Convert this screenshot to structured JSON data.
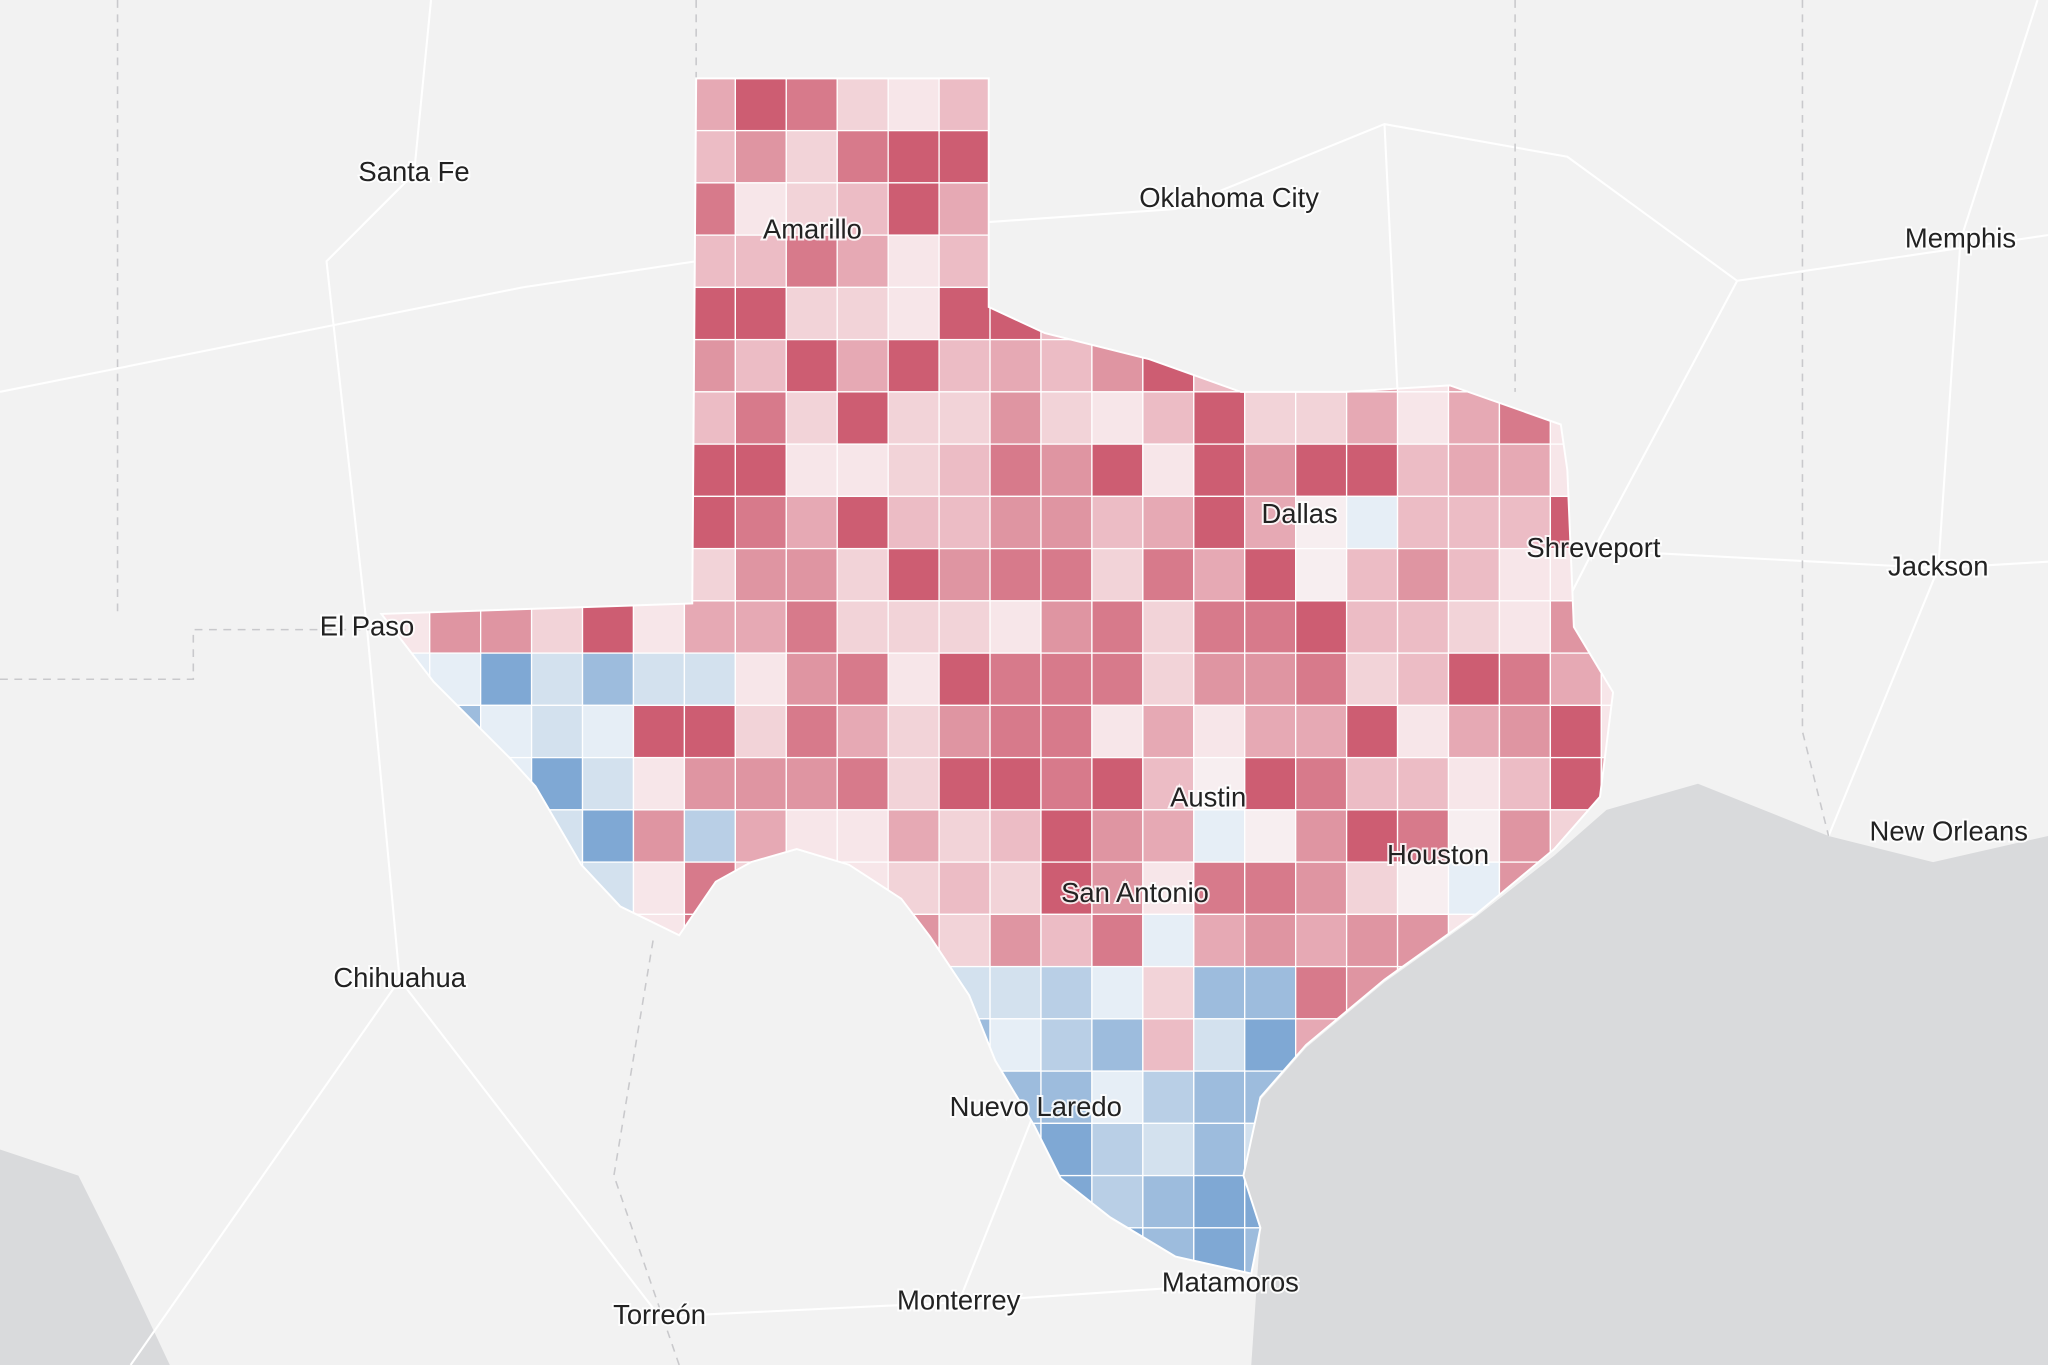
{
  "map": {
    "labels": [
      "Santa Fe",
      "Oklahoma City",
      "Amarillo",
      "Memphis",
      "Dallas",
      "Shreveport",
      "Jackson",
      "El Paso",
      "Austin",
      "New Orleans",
      "Houston",
      "San Antonio",
      "Chihuahua",
      "Nuevo Laredo",
      "Matamoros",
      "Monterrey",
      "Torreón"
    ]
  }
}
